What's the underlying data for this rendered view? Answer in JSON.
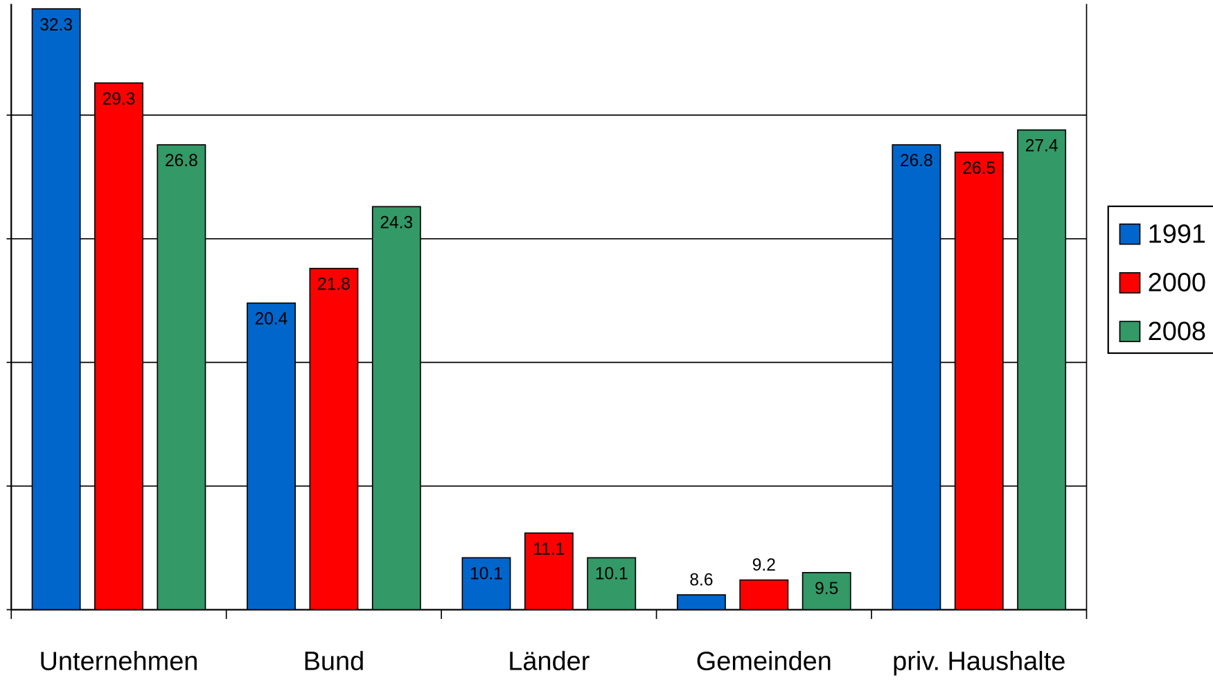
{
  "chart_data": {
    "type": "bar",
    "categories": [
      "Unternehmen",
      "Bund",
      "Länder",
      "Gemeinden",
      "priv. Haushalte"
    ],
    "series": [
      {
        "name": "1991",
        "color": "#0066cc",
        "values": [
          32.3,
          20.4,
          10.1,
          8.6,
          26.8
        ]
      },
      {
        "name": "2000",
        "color": "#ff0000",
        "values": [
          29.3,
          21.8,
          11.1,
          9.2,
          26.5
        ]
      },
      {
        "name": "2008",
        "color": "#339966",
        "values": [
          26.8,
          24.3,
          10.1,
          9.5,
          27.4
        ]
      }
    ],
    "series_value_labels": [],
    "ylim": [
      8,
      32.5
    ],
    "yticks": [
      8,
      13,
      18,
      23,
      28
    ],
    "grid": true,
    "legend": "right"
  }
}
